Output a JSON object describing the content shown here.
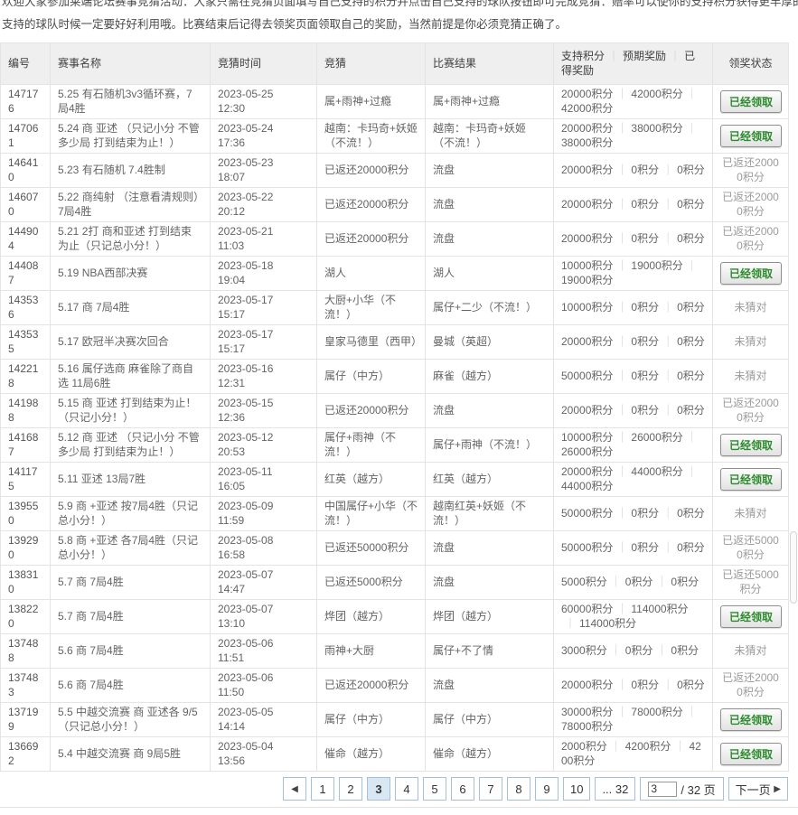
{
  "intro": {
    "line1": "欢迎大家参加莱端论坛赛事竞猜活动：大家只需在竞猜页面填写自己支持的积分并点击自己支持的球队按钮即可完成竞猜：赔率可以使你的支持积分获得更丰厚的回报，在选择",
    "line2": "支持的球队时候一定要好好利用哦。比赛结束后记得去领奖页面领取自己的奖励，当然前提是你必须竞猜正确了。"
  },
  "table": {
    "headers": {
      "id": "编号",
      "name": "赛事名称",
      "time": "竞猜时间",
      "bet": "竞猜",
      "result": "比赛结果",
      "points_parts": [
        "支持积分",
        "预期奖励",
        "已得奖励"
      ],
      "status": "领奖状态"
    },
    "separator": "｜",
    "unit": "积分",
    "rows": [
      {
        "id": "147176",
        "name": "5.25 有石随机3v3循环赛，7局4胜",
        "date": "2023-05-25",
        "time": "12:30",
        "bet": "属+雨神+过瘾",
        "result": "属+雨神+过瘾",
        "support": "20000",
        "expected": "42000",
        "earned": "42000",
        "status": "已经领取",
        "status_type": "claimed"
      },
      {
        "id": "147061",
        "name": "5.24 商 亚述 （只记小分 不管多少局 打到结束为止！）",
        "date": "2023-05-24",
        "time": "17:36",
        "bet": "越南：卡玛奇+妖姬（不流！）",
        "result": "越南：卡玛奇+妖姬（不流！）",
        "support": "20000",
        "expected": "38000",
        "earned": "38000",
        "status": "已经领取",
        "status_type": "claimed"
      },
      {
        "id": "146410",
        "name": "5.23 有石随机 7.4胜制",
        "date": "2023-05-23",
        "time": "18:07",
        "bet": "已返还20000积分",
        "result": "流盘",
        "support": "20000",
        "expected": "0",
        "earned": "0",
        "status": "已返还20000积分",
        "status_type": "refund"
      },
      {
        "id": "146070",
        "name": "5.22 商纯射 （注意看清规则）7局4胜",
        "date": "2023-05-22",
        "time": "20:12",
        "bet": "已返还20000积分",
        "result": "流盘",
        "support": "20000",
        "expected": "0",
        "earned": "0",
        "status": "已返还20000积分",
        "status_type": "refund"
      },
      {
        "id": "144904",
        "name": "5.21 2打 商和亚述 打到结束为止（只记总小分！）",
        "date": "2023-05-21",
        "time": "11:03",
        "bet": "已返还20000积分",
        "result": "流盘",
        "support": "20000",
        "expected": "0",
        "earned": "0",
        "status": "已返还20000积分",
        "status_type": "refund"
      },
      {
        "id": "144087",
        "name": "5.19 NBA西部决赛",
        "date": "2023-05-18",
        "time": "19:04",
        "bet": "湖人",
        "result": "湖人",
        "support": "10000",
        "expected": "19000",
        "earned": "19000",
        "status": "已经领取",
        "status_type": "claimed"
      },
      {
        "id": "143536",
        "name": "5.17 商 7局4胜",
        "date": "2023-05-17",
        "time": "15:17",
        "bet": "大厨+小华（不流！）",
        "result": "属仔+二少（不流！）",
        "support": "10000",
        "expected": "0",
        "earned": "0",
        "status": "未猜对",
        "status_type": "wrong"
      },
      {
        "id": "143535",
        "name": "5.17 欧冠半决赛次回合",
        "date": "2023-05-17",
        "time": "15:17",
        "bet": "皇家马德里（西甲）",
        "result": "曼城（英超）",
        "support": "20000",
        "expected": "0",
        "earned": "0",
        "status": "未猜对",
        "status_type": "wrong"
      },
      {
        "id": "142218",
        "name": "5.16 属仔选商 麻雀除了商自选 11局6胜",
        "date": "2023-05-16",
        "time": "12:31",
        "bet": "属仔（中方）",
        "result": "麻雀（越方）",
        "support": "50000",
        "expected": "0",
        "earned": "0",
        "status": "未猜对",
        "status_type": "wrong"
      },
      {
        "id": "141988",
        "name": "5.15 商 亚述 打到结束为止！（只记小分！）",
        "date": "2023-05-15",
        "time": "12:36",
        "bet": "已返还20000积分",
        "result": "流盘",
        "support": "20000",
        "expected": "0",
        "earned": "0",
        "status": "已返还20000积分",
        "status_type": "refund"
      },
      {
        "id": "141687",
        "name": "5.12 商 亚述 （只记小分 不管多少局 打到结束为止！）",
        "date": "2023-05-12",
        "time": "20:53",
        "bet": "属仔+雨神（不流！）",
        "result": "属仔+雨神（不流！）",
        "support": "10000",
        "expected": "26000",
        "earned": "26000",
        "status": "已经领取",
        "status_type": "claimed"
      },
      {
        "id": "141175",
        "name": "5.11 亚述 13局7胜",
        "date": "2023-05-11",
        "time": "16:05",
        "bet": "红英（越方）",
        "result": "红英（越方）",
        "support": "20000",
        "expected": "44000",
        "earned": "44000",
        "status": "已经领取",
        "status_type": "claimed"
      },
      {
        "id": "139550",
        "name": "5.9 商 +亚述 按7局4胜（只记总小分！）",
        "date": "2023-05-09",
        "time": "11:59",
        "bet": "中国属仔+小华（不流！）",
        "result": "越南红英+妖姬（不流！）",
        "support": "50000",
        "expected": "0",
        "earned": "0",
        "status": "未猜对",
        "status_type": "wrong"
      },
      {
        "id": "139290",
        "name": "5.8 商 +亚述 各7局4胜（只记总小分！）",
        "date": "2023-05-08",
        "time": "16:58",
        "bet": "已返还50000积分",
        "result": "流盘",
        "support": "50000",
        "expected": "0",
        "earned": "0",
        "status": "已返还50000积分",
        "status_type": "refund"
      },
      {
        "id": "138310",
        "name": "5.7 商 7局4胜",
        "date": "2023-05-07",
        "time": "14:47",
        "bet": "已返还5000积分",
        "result": "流盘",
        "support": "5000",
        "expected": "0",
        "earned": "0",
        "status": "已返还5000积分",
        "status_type": "refund"
      },
      {
        "id": "138220",
        "name": "5.7 商 7局4胜",
        "date": "2023-05-07",
        "time": "13:10",
        "bet": "烨团（越方）",
        "result": "烨团（越方）",
        "support": "60000",
        "expected": "114000",
        "earned": "114000",
        "status": "已经领取",
        "status_type": "claimed"
      },
      {
        "id": "137488",
        "name": "5.6 商 7局4胜",
        "date": "2023-05-06",
        "time": "11:51",
        "bet": "雨神+大厨",
        "result": "属仔+不了情",
        "support": "3000",
        "expected": "0",
        "earned": "0",
        "status": "未猜对",
        "status_type": "wrong"
      },
      {
        "id": "137483",
        "name": "5.6 商 7局4胜",
        "date": "2023-05-06",
        "time": "11:50",
        "bet": "已返还20000积分",
        "result": "流盘",
        "support": "20000",
        "expected": "0",
        "earned": "0",
        "status": "已返还20000积分",
        "status_type": "refund"
      },
      {
        "id": "137199",
        "name": "5.5 中越交流赛 商 亚述各 9/5 （只记总小分！）",
        "date": "2023-05-05",
        "time": "14:14",
        "bet": "属仔（中方）",
        "result": "属仔（中方）",
        "support": "30000",
        "expected": "78000",
        "earned": "78000",
        "status": "已经领取",
        "status_type": "claimed"
      },
      {
        "id": "136692",
        "name": "5.4 中越交流赛 商 9局5胜",
        "date": "2023-05-04",
        "time": "13:56",
        "bet": "催命（越方）",
        "result": "催命（越方）",
        "support": "2000",
        "expected": "4200",
        "earned": "4200",
        "status": "已经领取",
        "status_type": "claimed"
      }
    ]
  },
  "pagination": {
    "prev_icon": "◀",
    "pages": [
      "1",
      "2",
      "3",
      "4",
      "5",
      "6",
      "7",
      "8",
      "9",
      "10"
    ],
    "active": "3",
    "ellipsis": "... 32",
    "jump_value": "3",
    "jump_suffix": "/ 32 页",
    "next_label": "下一页",
    "next_icon": "▶"
  },
  "colors": {
    "claim_green": "#2d8a2d",
    "pagination_border": "#a5c0d8",
    "active_page_bg": "#d9e7f3",
    "header_bg": "#efefef"
  }
}
